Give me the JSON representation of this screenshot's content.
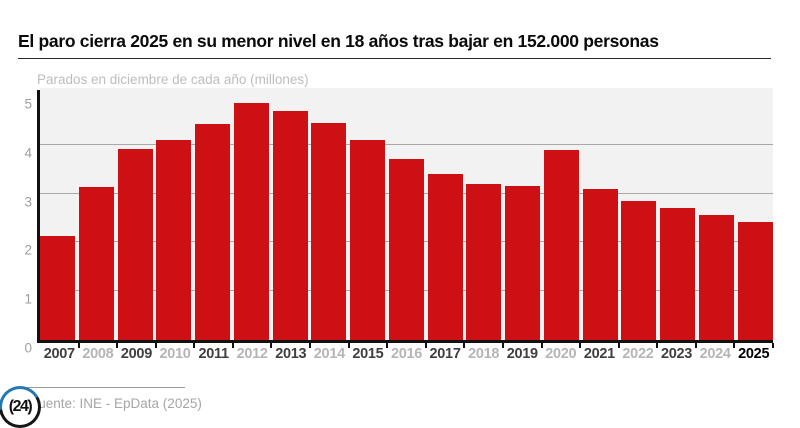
{
  "header": {
    "title": "El paro cierra 2025 en su menor nivel en 18 años tras bajar en 152.000 personas"
  },
  "chart_data": {
    "type": "bar",
    "subtitle": "Parados en diciembre de cada año (millones)",
    "categories": [
      "2007",
      "2008",
      "2009",
      "2010",
      "2011",
      "2012",
      "2013",
      "2014",
      "2015",
      "2016",
      "2017",
      "2018",
      "2019",
      "2020",
      "2021",
      "2022",
      "2023",
      "2024",
      "2025"
    ],
    "values": [
      2.13,
      3.13,
      3.92,
      4.1,
      4.42,
      4.85,
      4.7,
      4.45,
      4.09,
      3.7,
      3.41,
      3.2,
      3.16,
      3.89,
      3.1,
      2.84,
      2.71,
      2.56,
      2.41
    ],
    "xlabel": "",
    "ylabel": "",
    "ylim": [
      0,
      5
    ],
    "yticks": [
      0,
      1,
      2,
      3,
      4,
      5
    ],
    "gridline_values": [
      1,
      2,
      3,
      4
    ],
    "grid": "horizontal",
    "legend": "none",
    "bar_color": "#cc1013",
    "highlight_category": "2025"
  },
  "colors": {
    "bar": "#cc1013",
    "plot_background": "#f2f2f2",
    "gridline": "#a9a9a9",
    "axis": "#111111",
    "year_label_dark": "#3f3f3f",
    "year_label_light": "#b5b5b5",
    "year_label_highlight": "#000000",
    "subtitle": "#bdbdbd",
    "source_text": "#a6a6a6",
    "logo_ring_blue": "#2579b2",
    "logo_ring_black": "#151515"
  },
  "footer": {
    "source": "Fuente: INE - EpData (2025)",
    "logo_text": "(24)"
  }
}
